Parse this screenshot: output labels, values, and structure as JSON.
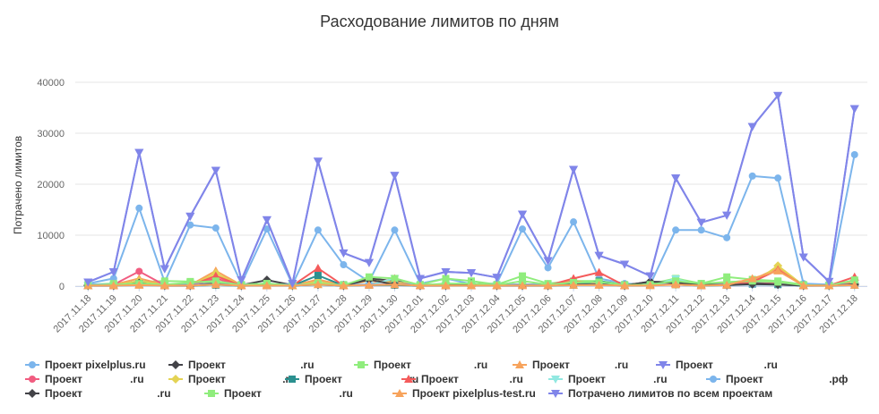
{
  "chart_data": {
    "type": "line",
    "title": "Расходование лимитов по дням",
    "ylabel": "Потрачено лимитов",
    "xlabel": "",
    "ylim": [
      0,
      40000
    ],
    "yticks": [
      0,
      10000,
      20000,
      30000,
      40000
    ],
    "grid": true,
    "legend_position": "bottom",
    "x": [
      "2017.11.18",
      "2017.11.19",
      "2017.11.20",
      "2017.11.21",
      "2017.11.22",
      "2017.11.23",
      "2017.11.24",
      "2017.11.25",
      "2017.11.26",
      "2017.11.27",
      "2017.11.28",
      "2017.11.29",
      "2017.11.30",
      "2017.12.01",
      "2017.12.02",
      "2017.12.03",
      "2017.12.04",
      "2017.12.05",
      "2017.12.06",
      "2017.12.07",
      "2017.12.08",
      "2017.12.09",
      "2017.12.10",
      "2017.12.11",
      "2017.12.12",
      "2017.12.13",
      "2017.12.14",
      "2017.12.15",
      "2017.12.16",
      "2017.12.17",
      "2017.12.18"
    ],
    "series": [
      {
        "name": "Проект pixelplus.ru",
        "color": "#7cb5ec",
        "marker": "circle",
        "values": [
          500,
          1500,
          15300,
          800,
          12000,
          11400,
          500,
          11200,
          300,
          11000,
          4200,
          900,
          11000,
          500,
          1500,
          400,
          500,
          11200,
          3600,
          12600,
          1500,
          500,
          300,
          11000,
          11000,
          9500,
          21600,
          21200,
          500,
          300,
          25800
        ]
      },
      {
        "name": "Проект                         .ru",
        "color": "#434348",
        "marker": "diamond",
        "values": [
          200,
          200,
          1000,
          300,
          300,
          500,
          200,
          1200,
          200,
          500,
          200,
          1500,
          1000,
          200,
          300,
          300,
          200,
          300,
          300,
          600,
          500,
          200,
          800,
          900,
          300,
          500,
          600,
          500,
          200,
          200,
          500
        ]
      },
      {
        "name": "Проект                     .ru",
        "color": "#90ed7d",
        "marker": "square",
        "values": [
          300,
          500,
          800,
          1000,
          900,
          800,
          300,
          500,
          200,
          900,
          300,
          1000,
          800,
          300,
          1500,
          1000,
          300,
          2000,
          500,
          1000,
          1000,
          300,
          400,
          1500,
          500,
          1800,
          1300,
          1000,
          300,
          200,
          1000
        ]
      },
      {
        "name": "Проект               .ru",
        "color": "#f7a35c",
        "marker": "triangle",
        "values": [
          100,
          300,
          1500,
          300,
          200,
          3000,
          200,
          300,
          100,
          1300,
          200,
          1000,
          700,
          200,
          300,
          500,
          200,
          400,
          200,
          1000,
          300,
          200,
          300,
          600,
          300,
          700,
          1200,
          3600,
          200,
          100,
          800
        ]
      },
      {
        "name": "Проект                 .ru",
        "color": "#8085e9",
        "marker": "triangle-down",
        "values": [
          800,
          2800,
          26200,
          3400,
          13700,
          22700,
          1200,
          13000,
          500,
          24500,
          6500,
          4600,
          21700,
          1500,
          2800,
          2600,
          1700,
          14100,
          5000,
          22900,
          6000,
          4300,
          2000,
          21200,
          12500,
          13900,
          31300,
          37400,
          5700,
          900,
          34800
        ]
      },
      {
        "name": "Проект                .ru",
        "color": "#f15c80",
        "marker": "circle",
        "values": [
          200,
          300,
          2900,
          200,
          200,
          1500,
          100,
          300,
          100,
          400,
          100,
          300,
          300,
          100,
          200,
          200,
          100,
          300,
          200,
          500,
          400,
          100,
          200,
          400,
          200,
          300,
          400,
          500,
          100,
          100,
          300
        ]
      },
      {
        "name": "Проект                   .ru",
        "color": "#e4d354",
        "marker": "diamond",
        "values": [
          100,
          200,
          1000,
          200,
          100,
          2500,
          100,
          200,
          100,
          800,
          100,
          1300,
          400,
          100,
          200,
          200,
          100,
          200,
          100,
          400,
          300,
          100,
          200,
          300,
          200,
          300,
          500,
          4000,
          100,
          100,
          200
        ]
      },
      {
        "name": "Проект                     .ru",
        "color": "#2b908f",
        "marker": "square",
        "values": [
          100,
          100,
          500,
          100,
          100,
          200,
          100,
          100,
          100,
          2100,
          100,
          200,
          200,
          100,
          100,
          100,
          100,
          200,
          100,
          200,
          1000,
          100,
          200,
          300,
          100,
          200,
          400,
          300,
          100,
          100,
          200
        ]
      },
      {
        "name": "Проект                 .ru",
        "color": "#f45b5b",
        "marker": "triangle",
        "values": [
          100,
          100,
          300,
          100,
          100,
          2000,
          100,
          100,
          100,
          3500,
          100,
          300,
          1500,
          100,
          100,
          100,
          100,
          200,
          100,
          1500,
          2700,
          100,
          300,
          500,
          100,
          300,
          800,
          3200,
          100,
          100,
          1800
        ]
      },
      {
        "name": "Проект                .ru",
        "color": "#91e8e1",
        "marker": "triangle-down",
        "values": [
          100,
          100,
          200,
          100,
          100,
          200,
          100,
          100,
          100,
          200,
          100,
          200,
          1500,
          100,
          100,
          100,
          100,
          100,
          100,
          200,
          200,
          100,
          100,
          1400,
          100,
          200,
          300,
          300,
          100,
          100,
          200
        ]
      },
      {
        "name": "Проект                      .рф",
        "color": "#7cb5ec",
        "marker": "circle",
        "values": [
          300,
          300,
          400,
          300,
          300,
          300,
          300,
          300,
          300,
          300,
          300,
          300,
          300,
          300,
          300,
          300,
          300,
          300,
          300,
          300,
          300,
          300,
          300,
          300,
          300,
          300,
          300,
          300,
          300,
          300,
          300
        ]
      },
      {
        "name": "Проект                         .ru",
        "color": "#434348",
        "marker": "diamond",
        "values": [
          100,
          100,
          600,
          100,
          100,
          300,
          100,
          300,
          100,
          300,
          100,
          1300,
          300,
          100,
          100,
          500,
          100,
          100,
          100,
          300,
          300,
          100,
          900,
          600,
          300,
          200,
          400,
          300,
          100,
          100,
          300
        ]
      },
      {
        "name": "Проект                          .ru",
        "color": "#90ed7d",
        "marker": "square",
        "values": [
          100,
          300,
          500,
          300,
          700,
          1000,
          200,
          500,
          100,
          500,
          200,
          1800,
          1500,
          200,
          500,
          500,
          200,
          1000,
          300,
          700,
          800,
          200,
          300,
          1000,
          500,
          800,
          1000,
          800,
          200,
          100,
          1200
        ]
      },
      {
        "name": "Проект pixelplus-test.ru",
        "color": "#f7a35c",
        "marker": "triangle",
        "values": [
          100,
          100,
          200,
          100,
          100,
          300,
          100,
          100,
          100,
          300,
          100,
          200,
          300,
          100,
          100,
          100,
          100,
          100,
          100,
          200,
          200,
          100,
          100,
          300,
          100,
          200,
          1500,
          3000,
          100,
          100,
          200
        ]
      },
      {
        "name": "Потрачено лимитов по всем проектам",
        "color": "#8085e9",
        "marker": "triangle-down",
        "values": [
          800,
          2800,
          26200,
          3400,
          13700,
          22700,
          1200,
          13000,
          500,
          24500,
          6500,
          4600,
          21700,
          1500,
          2800,
          2600,
          1700,
          14100,
          5000,
          22900,
          6000,
          4300,
          2000,
          21200,
          12500,
          13900,
          31300,
          37400,
          5700,
          900,
          34800
        ]
      }
    ]
  }
}
